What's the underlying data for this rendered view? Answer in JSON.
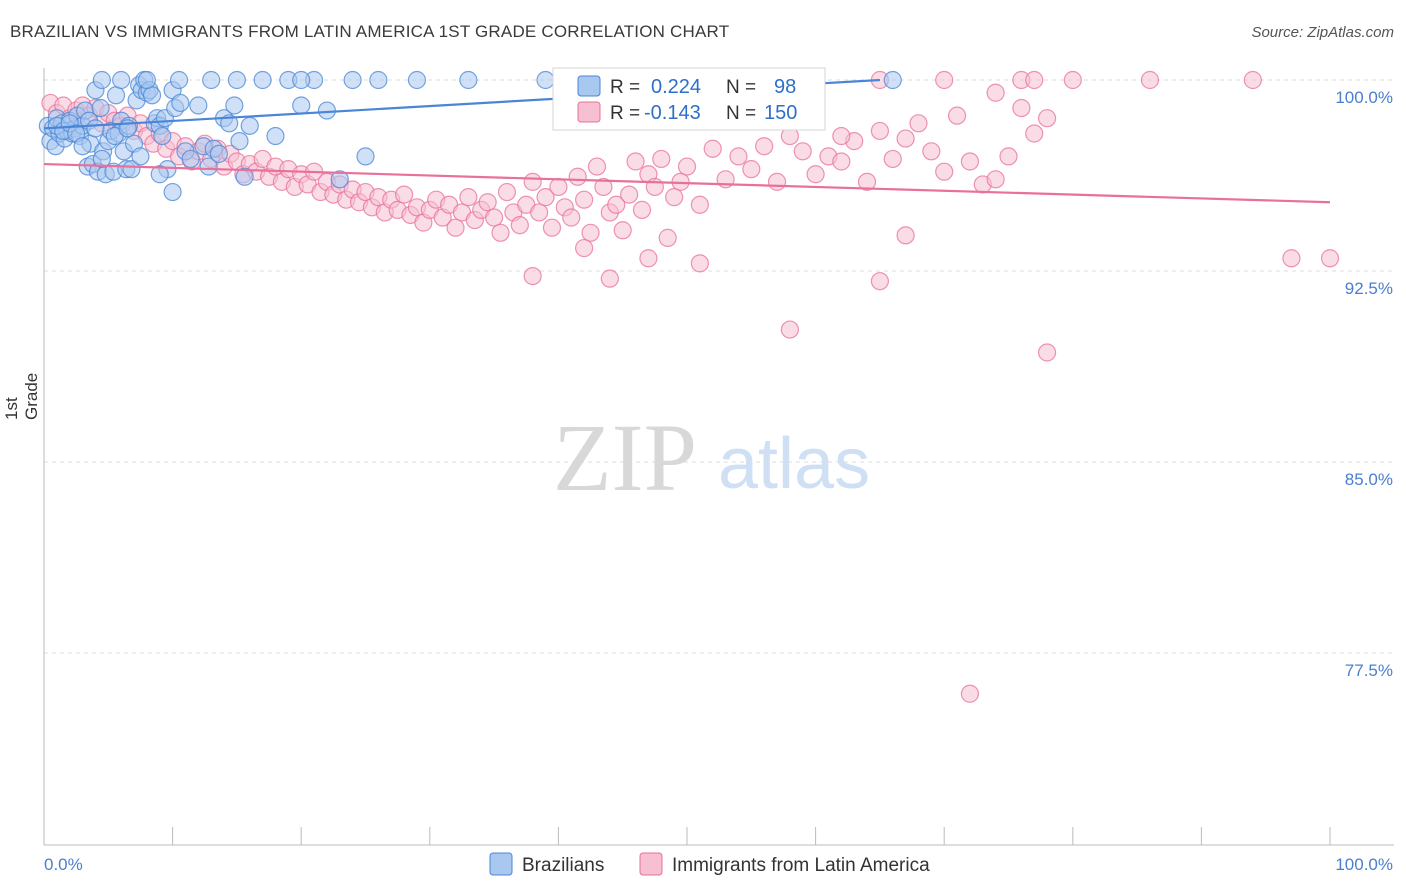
{
  "title": "BRAZILIAN VS IMMIGRANTS FROM LATIN AMERICA 1ST GRADE CORRELATION CHART",
  "source": "Source: ZipAtlas.com",
  "watermark": {
    "zip": "ZIP",
    "atlas": "atlas"
  },
  "colors": {
    "blue": "#4a85d6",
    "blue_fill": "#a9c8f0",
    "pink": "#e8709a",
    "pink_fill": "#f6bfd2",
    "axis_label": "#4a7fd0"
  },
  "legend": {
    "rows": [
      {
        "r_label": "R =",
        "r_value": "0.224",
        "n_label": "N =",
        "n_value": "98"
      },
      {
        "r_label": "R =",
        "r_value": "-0.143",
        "n_label": "N =",
        "n_value": "150"
      }
    ]
  },
  "chart_data": {
    "type": "scatter",
    "title": "BRAZILIAN VS IMMIGRANTS FROM LATIN AMERICA 1ST GRADE CORRELATION CHART",
    "xlabel": "",
    "ylabel": "1st Grade",
    "xlim": [
      0,
      100
    ],
    "ylim": [
      70.5,
      101.5
    ],
    "x_tick_labels": [
      "0.0%",
      "100.0%"
    ],
    "y_ticks": [
      100.0,
      92.5,
      85.0,
      77.5
    ],
    "y_tick_labels": [
      "100.0%",
      "92.5%",
      "85.0%",
      "77.5%"
    ],
    "grid": true,
    "legend_position": "top-center",
    "series": [
      {
        "name": "Brazilians",
        "color": "#4a85d6",
        "r": 0.224,
        "n": 98,
        "trend": [
          [
            0.0,
            98.1
          ],
          [
            65.0,
            100.0
          ]
        ],
        "points": [
          [
            0.3,
            98.2
          ],
          [
            0.5,
            97.6
          ],
          [
            0.7,
            98.1
          ],
          [
            0.9,
            97.4
          ],
          [
            1.0,
            98.5
          ],
          [
            1.2,
            97.9
          ],
          [
            1.4,
            98.3
          ],
          [
            1.6,
            97.7
          ],
          [
            1.8,
            98.0
          ],
          [
            2.0,
            98.4
          ],
          [
            2.2,
            97.9
          ],
          [
            2.4,
            98.1
          ],
          [
            2.6,
            98.6
          ],
          [
            2.8,
            97.8
          ],
          [
            3.0,
            98.2
          ],
          [
            3.2,
            98.8
          ],
          [
            3.4,
            96.6
          ],
          [
            3.6,
            97.5
          ],
          [
            3.8,
            96.7
          ],
          [
            4.0,
            99.6
          ],
          [
            4.2,
            96.4
          ],
          [
            4.4,
            98.9
          ],
          [
            4.6,
            97.2
          ],
          [
            4.8,
            96.3
          ],
          [
            5.0,
            97.6
          ],
          [
            5.2,
            98.0
          ],
          [
            5.4,
            96.4
          ],
          [
            5.6,
            99.4
          ],
          [
            5.8,
            97.9
          ],
          [
            6.0,
            98.4
          ],
          [
            6.2,
            97.2
          ],
          [
            6.4,
            96.5
          ],
          [
            6.6,
            98.2
          ],
          [
            6.8,
            96.5
          ],
          [
            7.0,
            97.5
          ],
          [
            7.2,
            99.2
          ],
          [
            7.4,
            99.8
          ],
          [
            7.6,
            99.6
          ],
          [
            7.8,
            100.0
          ],
          [
            8.0,
            99.5
          ],
          [
            8.2,
            99.6
          ],
          [
            8.4,
            99.4
          ],
          [
            8.6,
            98.3
          ],
          [
            8.8,
            98.5
          ],
          [
            9.0,
            98.2
          ],
          [
            9.2,
            97.8
          ],
          [
            9.4,
            98.5
          ],
          [
            9.6,
            96.5
          ],
          [
            10.0,
            99.6
          ],
          [
            10.2,
            98.9
          ],
          [
            10.6,
            99.1
          ],
          [
            11.0,
            97.2
          ],
          [
            11.4,
            96.9
          ],
          [
            12.0,
            99.0
          ],
          [
            12.4,
            97.4
          ],
          [
            12.8,
            96.6
          ],
          [
            13.2,
            97.3
          ],
          [
            13.6,
            97.1
          ],
          [
            14.0,
            98.5
          ],
          [
            14.4,
            98.3
          ],
          [
            14.8,
            99.0
          ],
          [
            15.2,
            97.6
          ],
          [
            15.6,
            96.2
          ],
          [
            16.0,
            98.2
          ],
          [
            17.0,
            100.0
          ],
          [
            18.0,
            97.8
          ],
          [
            19.0,
            100.0
          ],
          [
            20.0,
            99.0
          ],
          [
            21.0,
            100.0
          ],
          [
            22.0,
            98.8
          ],
          [
            23.0,
            96.1
          ],
          [
            24.0,
            100.0
          ],
          [
            25.0,
            97.0
          ],
          [
            26.0,
            100.0
          ],
          [
            4.5,
            100.0
          ],
          [
            6.0,
            100.0
          ],
          [
            8.0,
            100.0
          ],
          [
            10.5,
            100.0
          ],
          [
            13.0,
            100.0
          ],
          [
            15.0,
            100.0
          ],
          [
            20.0,
            100.0
          ],
          [
            29.0,
            100.0
          ],
          [
            33.0,
            100.0
          ],
          [
            39.0,
            100.0
          ],
          [
            66.0,
            100.0
          ],
          [
            1.0,
            98.2
          ],
          [
            1.5,
            98.0
          ],
          [
            2.0,
            98.3
          ],
          [
            2.5,
            97.9
          ],
          [
            3.0,
            97.4
          ],
          [
            3.5,
            98.4
          ],
          [
            4.0,
            98.1
          ],
          [
            4.5,
            96.9
          ],
          [
            5.5,
            97.8
          ],
          [
            6.5,
            98.1
          ],
          [
            7.5,
            97.0
          ],
          [
            9.0,
            96.3
          ],
          [
            10.0,
            95.6
          ]
        ]
      },
      {
        "name": "Immigrants from Latin America",
        "color": "#e8709a",
        "r": -0.143,
        "n": 150,
        "trend": [
          [
            0.0,
            96.7
          ],
          [
            100.0,
            95.2
          ]
        ],
        "points": [
          [
            0.5,
            99.1
          ],
          [
            1.0,
            98.7
          ],
          [
            1.5,
            99.0
          ],
          [
            2.0,
            98.5
          ],
          [
            2.5,
            98.8
          ],
          [
            3.0,
            99.0
          ],
          [
            3.5,
            98.6
          ],
          [
            4.0,
            98.9
          ],
          [
            4.5,
            98.3
          ],
          [
            5.0,
            98.7
          ],
          [
            5.5,
            98.4
          ],
          [
            6.0,
            98.2
          ],
          [
            6.5,
            98.6
          ],
          [
            7.0,
            98.0
          ],
          [
            7.5,
            98.3
          ],
          [
            8.0,
            97.8
          ],
          [
            8.5,
            97.5
          ],
          [
            9.0,
            97.9
          ],
          [
            9.5,
            97.3
          ],
          [
            10.0,
            97.6
          ],
          [
            10.5,
            97.0
          ],
          [
            11.0,
            97.4
          ],
          [
            11.5,
            96.8
          ],
          [
            12.0,
            97.2
          ],
          [
            12.5,
            97.5
          ],
          [
            13.0,
            96.9
          ],
          [
            13.5,
            97.3
          ],
          [
            14.0,
            96.6
          ],
          [
            14.5,
            97.1
          ],
          [
            15.0,
            96.8
          ],
          [
            15.5,
            96.3
          ],
          [
            16.0,
            96.7
          ],
          [
            16.5,
            96.4
          ],
          [
            17.0,
            96.9
          ],
          [
            17.5,
            96.2
          ],
          [
            18.0,
            96.6
          ],
          [
            18.5,
            96.0
          ],
          [
            19.0,
            96.5
          ],
          [
            19.5,
            95.8
          ],
          [
            20.0,
            96.3
          ],
          [
            20.5,
            95.9
          ],
          [
            21.0,
            96.4
          ],
          [
            21.5,
            95.6
          ],
          [
            22.0,
            96.0
          ],
          [
            22.5,
            95.5
          ],
          [
            23.0,
            95.9
          ],
          [
            23.5,
            95.3
          ],
          [
            24.0,
            95.7
          ],
          [
            24.5,
            95.2
          ],
          [
            25.0,
            95.6
          ],
          [
            25.5,
            95.0
          ],
          [
            26.0,
            95.4
          ],
          [
            26.5,
            94.8
          ],
          [
            27.0,
            95.3
          ],
          [
            27.5,
            94.9
          ],
          [
            28.0,
            95.5
          ],
          [
            28.5,
            94.7
          ],
          [
            29.0,
            95.0
          ],
          [
            29.5,
            94.4
          ],
          [
            30.0,
            94.9
          ],
          [
            30.5,
            95.3
          ],
          [
            31.0,
            94.6
          ],
          [
            31.5,
            95.1
          ],
          [
            32.0,
            94.2
          ],
          [
            32.5,
            94.8
          ],
          [
            33.0,
            95.4
          ],
          [
            33.5,
            94.5
          ],
          [
            34.0,
            94.9
          ],
          [
            34.5,
            95.2
          ],
          [
            35.0,
            94.6
          ],
          [
            35.5,
            94.0
          ],
          [
            36.0,
            95.6
          ],
          [
            36.5,
            94.8
          ],
          [
            37.0,
            94.3
          ],
          [
            37.5,
            95.1
          ],
          [
            38.0,
            96.0
          ],
          [
            38.5,
            94.8
          ],
          [
            39.0,
            95.4
          ],
          [
            39.5,
            94.2
          ],
          [
            40.0,
            95.8
          ],
          [
            40.5,
            95.0
          ],
          [
            41.0,
            94.6
          ],
          [
            41.5,
            96.2
          ],
          [
            42.0,
            95.3
          ],
          [
            42.5,
            94.0
          ],
          [
            43.0,
            96.6
          ],
          [
            43.5,
            95.8
          ],
          [
            44.0,
            94.8
          ],
          [
            44.5,
            95.1
          ],
          [
            45.0,
            94.1
          ],
          [
            45.5,
            95.5
          ],
          [
            46.0,
            96.8
          ],
          [
            46.5,
            94.9
          ],
          [
            47.0,
            96.3
          ],
          [
            47.5,
            95.8
          ],
          [
            48.0,
            96.9
          ],
          [
            48.5,
            93.8
          ],
          [
            49.0,
            95.4
          ],
          [
            49.5,
            96.0
          ],
          [
            50.0,
            96.6
          ],
          [
            51.0,
            95.1
          ],
          [
            52.0,
            97.3
          ],
          [
            53.0,
            96.1
          ],
          [
            54.0,
            97.0
          ],
          [
            55.0,
            96.5
          ],
          [
            56.0,
            97.4
          ],
          [
            57.0,
            96.0
          ],
          [
            58.0,
            97.8
          ],
          [
            59.0,
            97.2
          ],
          [
            60.0,
            96.3
          ],
          [
            61.0,
            97.0
          ],
          [
            62.0,
            96.8
          ],
          [
            63.0,
            97.6
          ],
          [
            64.0,
            96.0
          ],
          [
            65.0,
            98.0
          ],
          [
            66.0,
            96.9
          ],
          [
            67.0,
            97.7
          ],
          [
            68.0,
            98.3
          ],
          [
            69.0,
            97.2
          ],
          [
            70.0,
            96.4
          ],
          [
            71.0,
            98.6
          ],
          [
            72.0,
            96.8
          ],
          [
            73.0,
            95.9
          ],
          [
            74.0,
            96.1
          ],
          [
            75.0,
            97.0
          ],
          [
            76.0,
            98.9
          ],
          [
            77.0,
            97.9
          ],
          [
            78.0,
            98.5
          ],
          [
            74.0,
            99.5
          ],
          [
            42.0,
            93.4
          ],
          [
            38.0,
            92.3
          ],
          [
            44.0,
            92.2
          ],
          [
            47.0,
            93.0
          ],
          [
            58.0,
            90.2
          ],
          [
            65.0,
            92.1
          ],
          [
            78.0,
            89.3
          ],
          [
            65.0,
            100.0
          ],
          [
            76.0,
            100.0
          ],
          [
            80.0,
            100.0
          ],
          [
            86.0,
            100.0
          ],
          [
            94.0,
            100.0
          ],
          [
            100.0,
            93.0
          ],
          [
            97.0,
            93.0
          ],
          [
            70.0,
            100.0
          ],
          [
            77.0,
            100.0
          ],
          [
            55.0,
            98.5
          ],
          [
            62.0,
            97.8
          ],
          [
            67.0,
            93.9
          ],
          [
            72.0,
            75.9
          ],
          [
            51.0,
            92.8
          ]
        ]
      }
    ]
  }
}
